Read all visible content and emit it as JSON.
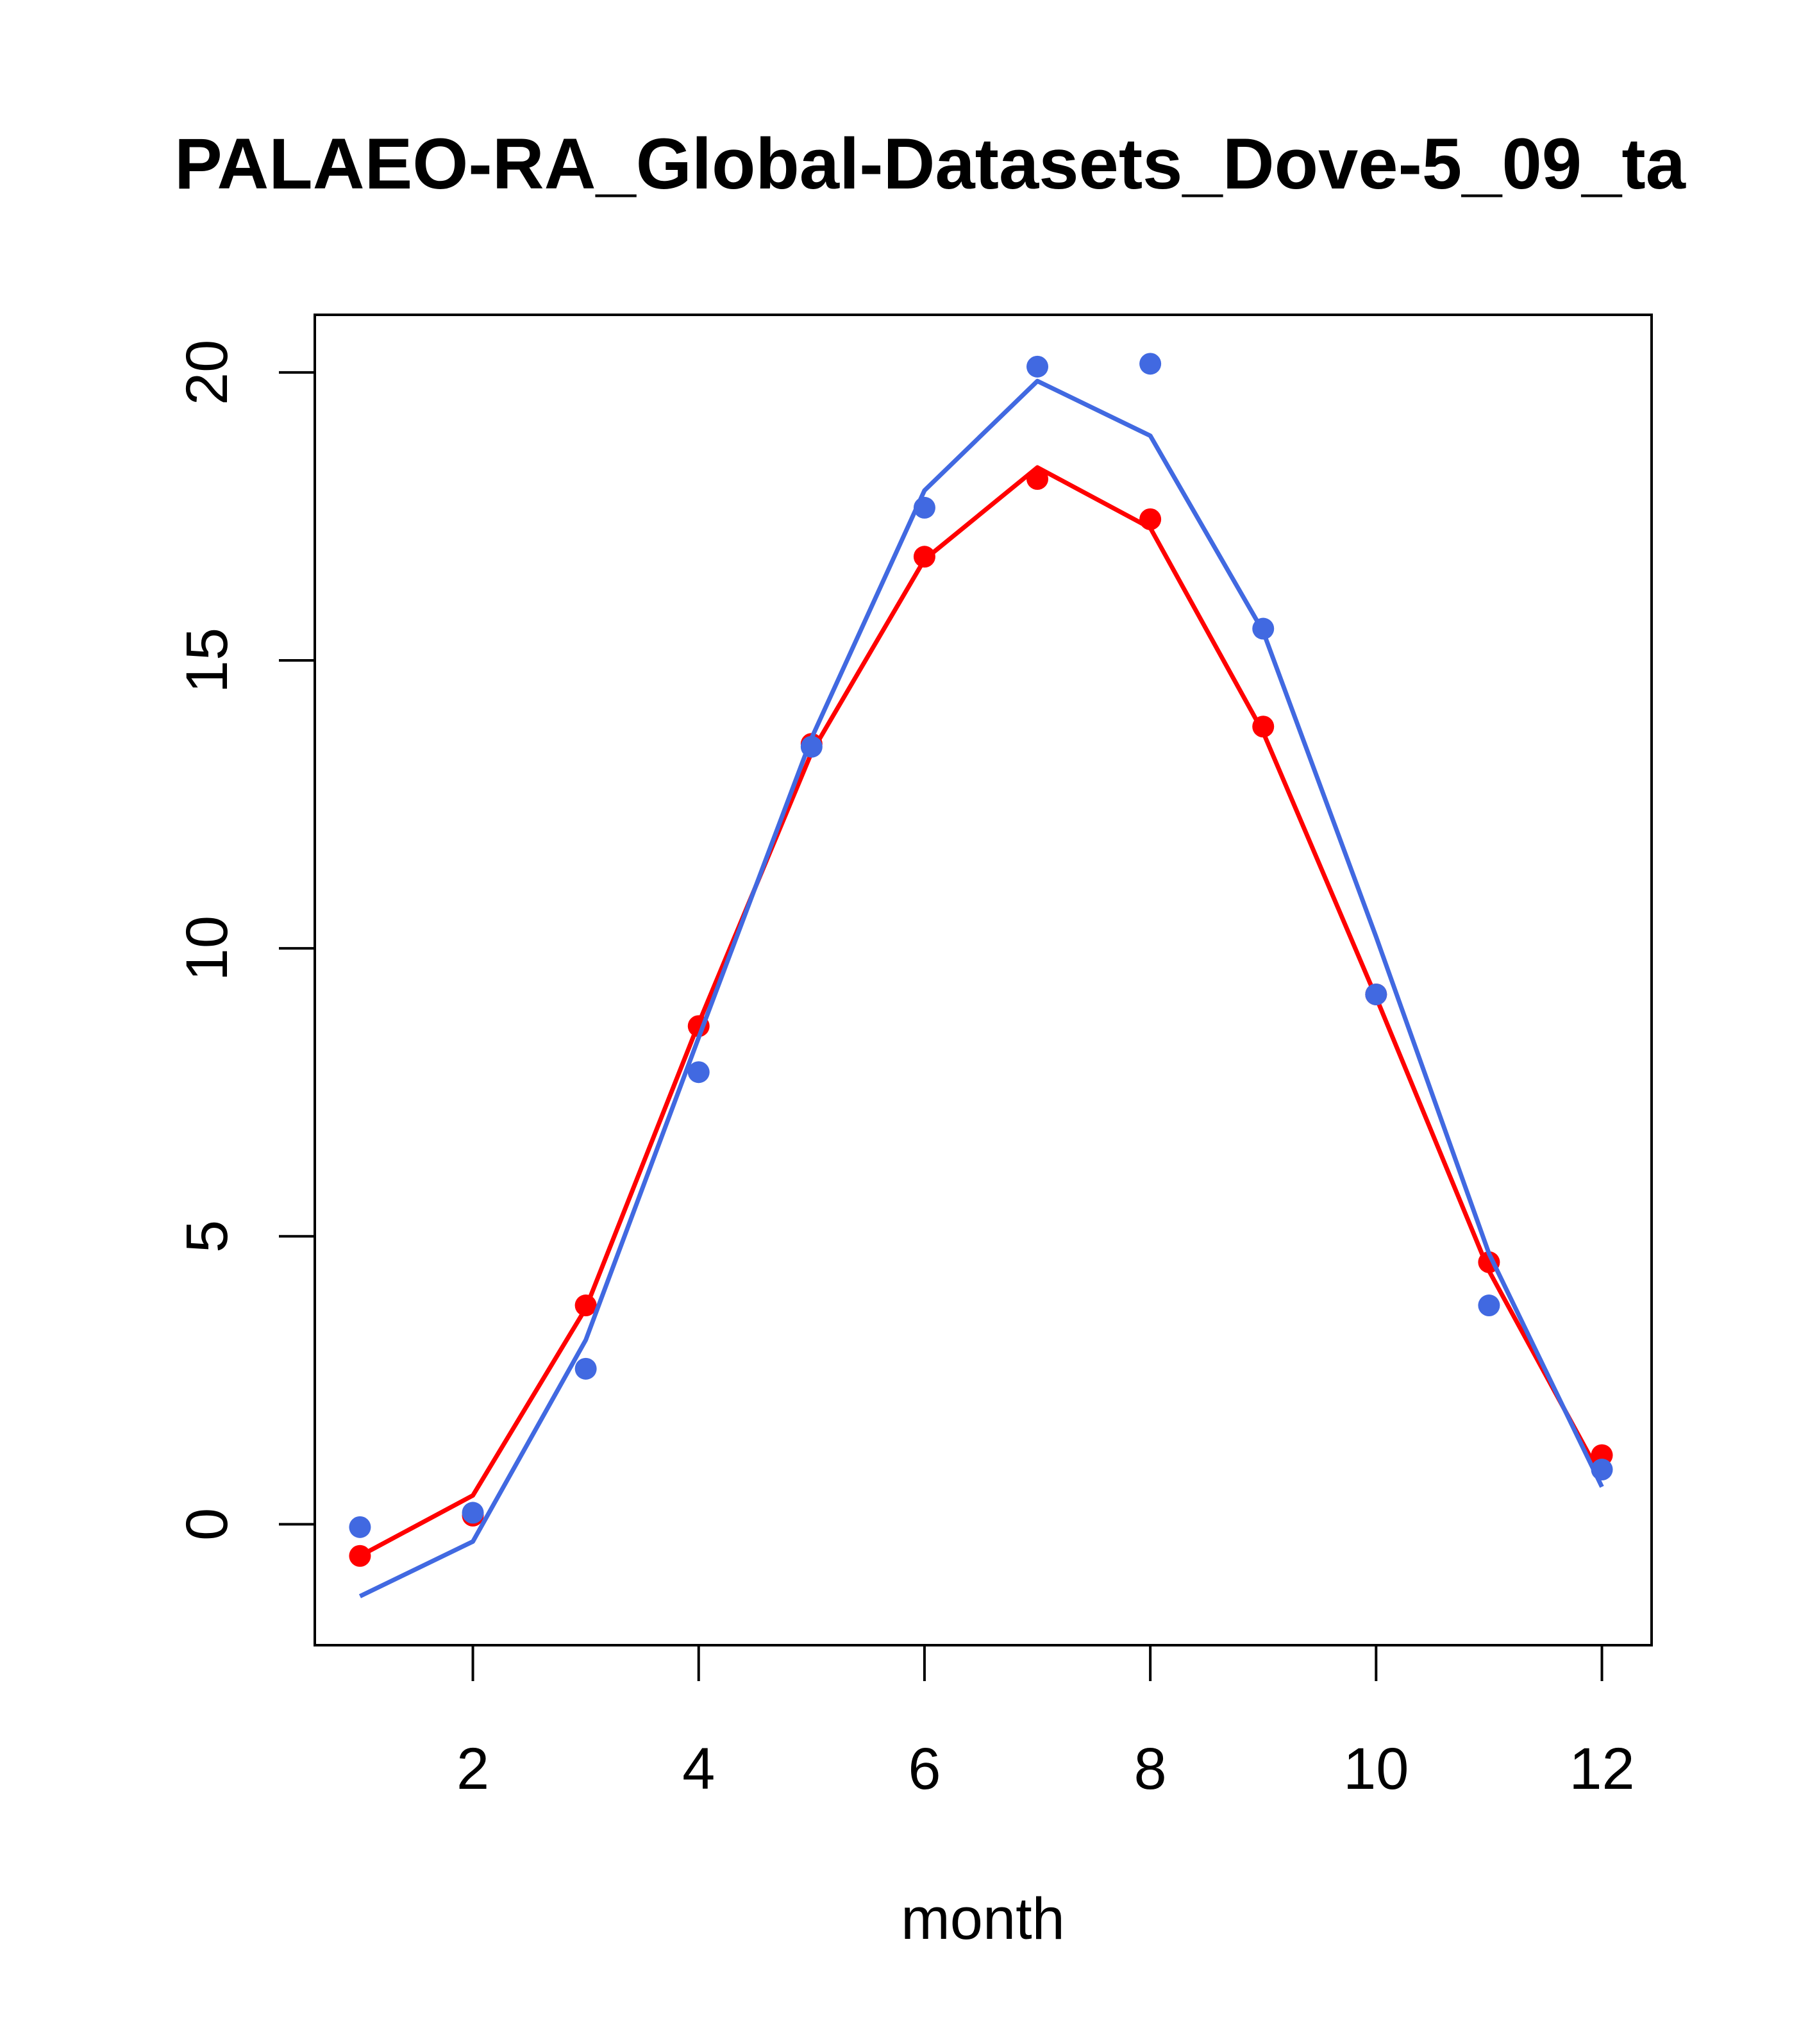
{
  "chart_data": {
    "type": "line",
    "title": "PALAEO-RA_Global-Datasets_Dove-5_09_ta",
    "xlabel": "month",
    "ylabel": "",
    "xlim": [
      0.6,
      12.44
    ],
    "ylim": [
      -2.1,
      21.0
    ],
    "x_ticks": [
      2,
      4,
      6,
      8,
      10,
      12
    ],
    "y_ticks": [
      0,
      5,
      10,
      15,
      20
    ],
    "grid": false,
    "legend": "none",
    "x": [
      1,
      2,
      3,
      4,
      5,
      6,
      7,
      8,
      9,
      10,
      11,
      12
    ],
    "series": [
      {
        "color": "#ff0000",
        "points": [
          -0.55,
          0.15,
          3.8,
          8.65,
          13.55,
          16.8,
          18.15,
          17.45,
          13.85,
          9.2,
          4.55,
          1.2
        ],
        "line": [
          -0.55,
          0.5,
          3.75,
          8.7,
          13.4,
          16.75,
          18.35,
          17.3,
          13.75,
          9.15,
          4.4,
          0.8
        ]
      },
      {
        "color": "#4169e1",
        "points": [
          -0.05,
          0.2,
          2.7,
          7.85,
          13.5,
          17.65,
          20.1,
          20.15,
          15.55,
          9.2,
          3.8,
          0.95
        ],
        "line": [
          -1.25,
          -0.3,
          3.2,
          8.45,
          13.65,
          17.95,
          19.85,
          18.9,
          15.5,
          10.2,
          4.7,
          0.65
        ]
      }
    ]
  }
}
